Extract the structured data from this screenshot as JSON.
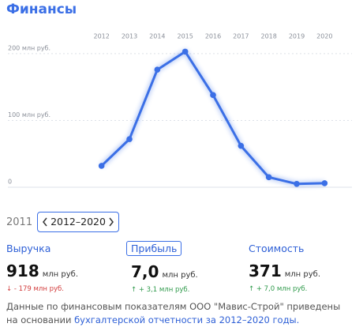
{
  "header": {
    "title": "Финансы"
  },
  "chart_data": {
    "type": "line",
    "categories": [
      "2012",
      "2013",
      "2014",
      "2015",
      "2016",
      "2017",
      "2018",
      "2019",
      "2020"
    ],
    "values": [
      32,
      72,
      176,
      203,
      138,
      62,
      15,
      5,
      6
    ],
    "color": "#3b6fe6",
    "ylim": [
      0,
      220
    ],
    "yticks": [
      {
        "value": 0,
        "label": "0"
      },
      {
        "value": 100,
        "label": "100 млн руб."
      },
      {
        "value": 200,
        "label": "200 млн руб."
      }
    ],
    "grid": true
  },
  "period": {
    "prev": "2011",
    "current": "2012–2020"
  },
  "metrics": [
    {
      "label": "Выручка",
      "value": "918",
      "unit": "млн руб.",
      "change": "↓ - 179 млн руб."
    },
    {
      "label": "Прибыль",
      "value": "7,0",
      "unit": "млн руб.",
      "change": "↑ + 3,1 млн руб."
    },
    {
      "label": "Стоимость",
      "value": "371",
      "unit": "млн руб.",
      "change": "↑ + 7,0 млн руб."
    }
  ],
  "footer": {
    "text": "Данные по финансовым показателям ООО \"Мавис-Строй\" приведены на основании",
    "link": "бухгалтерской отчетности за 2012–2020 годы."
  }
}
